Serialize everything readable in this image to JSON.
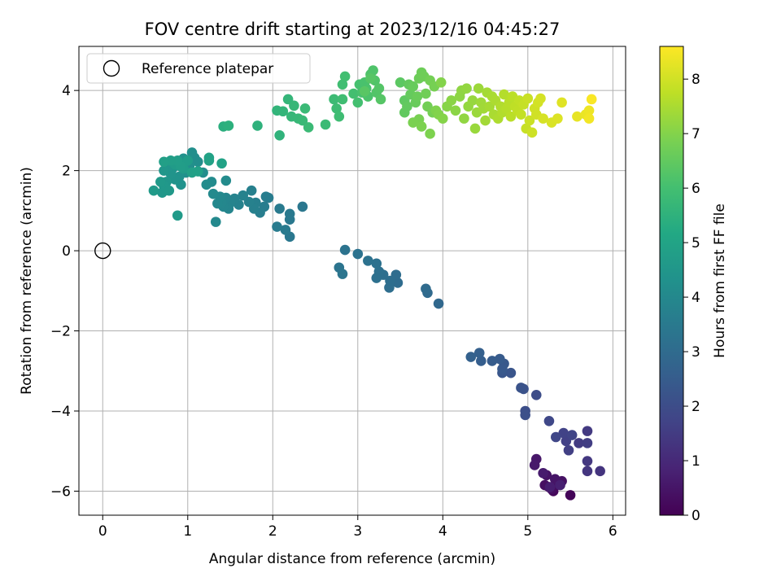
{
  "chart_data": {
    "type": "scatter",
    "title": "FOV centre drift starting at 2023/12/16 04:45:27",
    "xlabel": "Angular distance from reference (arcmin)",
    "ylabel": "Rotation from reference (arcmin)",
    "xlim": [
      -0.28,
      6.15
    ],
    "ylim": [
      -6.6,
      5.1
    ],
    "xticks": [
      0,
      1,
      2,
      3,
      4,
      5,
      6
    ],
    "yticks": [
      -6,
      -4,
      -2,
      0,
      2,
      4
    ],
    "xtick_labels": [
      "0",
      "1",
      "2",
      "3",
      "4",
      "5",
      "6"
    ],
    "ytick_labels": [
      "−6",
      "−4",
      "−2",
      "0",
      "2",
      "4"
    ],
    "grid": true,
    "legend": {
      "position": "top-left",
      "entries": [
        {
          "label": "Reference platepar",
          "marker": "open-circle"
        }
      ]
    },
    "colorbar": {
      "label": "Hours from first FF file",
      "colormap": "viridis",
      "range": [
        0,
        8.6
      ],
      "ticks": [
        0,
        1,
        2,
        3,
        4,
        5,
        6,
        7,
        8
      ],
      "tick_labels": [
        "0",
        "1",
        "2",
        "3",
        "4",
        "5",
        "6",
        "7",
        "8"
      ]
    },
    "reference_point": {
      "x": 0,
      "y": 0,
      "label": "Reference platepar"
    },
    "points": [
      {
        "x": 5.5,
        "y": -6.1,
        "c": 0.1
      },
      {
        "x": 5.3,
        "y": -6.0,
        "c": 0.15
      },
      {
        "x": 5.25,
        "y": -5.9,
        "c": 0.2
      },
      {
        "x": 5.35,
        "y": -5.8,
        "c": 0.25
      },
      {
        "x": 5.28,
        "y": -5.95,
        "c": 0.3
      },
      {
        "x": 5.2,
        "y": -5.85,
        "c": 0.35
      },
      {
        "x": 5.4,
        "y": -5.75,
        "c": 0.4
      },
      {
        "x": 5.22,
        "y": -5.6,
        "c": 0.45
      },
      {
        "x": 5.32,
        "y": -5.7,
        "c": 0.5
      },
      {
        "x": 5.1,
        "y": -5.2,
        "c": 0.55
      },
      {
        "x": 5.08,
        "y": -5.35,
        "c": 0.6
      },
      {
        "x": 5.18,
        "y": -5.55,
        "c": 0.65
      },
      {
        "x": 5.26,
        "y": -5.9,
        "c": 0.7
      },
      {
        "x": 5.38,
        "y": -5.85,
        "c": 0.75
      },
      {
        "x": 5.85,
        "y": -5.5,
        "c": 1.3
      },
      {
        "x": 5.7,
        "y": -5.5,
        "c": 1.35
      },
      {
        "x": 5.7,
        "y": -5.25,
        "c": 1.4
      },
      {
        "x": 5.7,
        "y": -4.5,
        "c": 1.45
      },
      {
        "x": 5.6,
        "y": -4.8,
        "c": 1.5
      },
      {
        "x": 5.7,
        "y": -4.8,
        "c": 1.55
      },
      {
        "x": 5.48,
        "y": -4.98,
        "c": 1.6
      },
      {
        "x": 5.45,
        "y": -4.75,
        "c": 1.65
      },
      {
        "x": 5.42,
        "y": -4.55,
        "c": 1.7
      },
      {
        "x": 5.52,
        "y": -4.6,
        "c": 1.75
      },
      {
        "x": 5.33,
        "y": -4.65,
        "c": 1.8
      },
      {
        "x": 5.25,
        "y": -4.25,
        "c": 1.85
      },
      {
        "x": 5.1,
        "y": -3.6,
        "c": 2.0
      },
      {
        "x": 4.97,
        "y": -4.0,
        "c": 2.05
      },
      {
        "x": 4.97,
        "y": -4.1,
        "c": 2.1
      },
      {
        "x": 4.95,
        "y": -3.45,
        "c": 2.15
      },
      {
        "x": 4.92,
        "y": -3.42,
        "c": 2.2
      },
      {
        "x": 4.8,
        "y": -3.05,
        "c": 2.25
      },
      {
        "x": 4.7,
        "y": -3.05,
        "c": 2.3
      },
      {
        "x": 4.72,
        "y": -2.82,
        "c": 2.35
      },
      {
        "x": 4.7,
        "y": -2.95,
        "c": 2.4
      },
      {
        "x": 4.67,
        "y": -2.7,
        "c": 2.45
      },
      {
        "x": 4.58,
        "y": -2.75,
        "c": 2.5
      },
      {
        "x": 4.45,
        "y": -2.75,
        "c": 2.55
      },
      {
        "x": 4.43,
        "y": -2.55,
        "c": 2.6
      },
      {
        "x": 4.33,
        "y": -2.65,
        "c": 2.65
      },
      {
        "x": 3.95,
        "y": -1.32,
        "c": 2.9
      },
      {
        "x": 3.82,
        "y": -1.05,
        "c": 2.95
      },
      {
        "x": 3.8,
        "y": -0.95,
        "c": 3.0
      },
      {
        "x": 3.47,
        "y": -0.8,
        "c": 3.02
      },
      {
        "x": 3.45,
        "y": -0.6,
        "c": 3.05
      },
      {
        "x": 3.37,
        "y": -0.92,
        "c": 3.08
      },
      {
        "x": 3.38,
        "y": -0.75,
        "c": 3.1
      },
      {
        "x": 3.3,
        "y": -0.6,
        "c": 3.12
      },
      {
        "x": 3.25,
        "y": -0.52,
        "c": 3.15
      },
      {
        "x": 3.22,
        "y": -0.68,
        "c": 3.18
      },
      {
        "x": 3.22,
        "y": -0.32,
        "c": 3.2
      },
      {
        "x": 3.12,
        "y": -0.25,
        "c": 3.22
      },
      {
        "x": 3.0,
        "y": -0.08,
        "c": 3.25
      },
      {
        "x": 2.85,
        "y": 0.02,
        "c": 3.28
      },
      {
        "x": 2.78,
        "y": -0.42,
        "c": 3.3
      },
      {
        "x": 2.82,
        "y": -0.58,
        "c": 3.32
      },
      {
        "x": 2.35,
        "y": 1.1,
        "c": 3.4
      },
      {
        "x": 2.2,
        "y": 0.35,
        "c": 3.42
      },
      {
        "x": 2.2,
        "y": 0.78,
        "c": 3.45
      },
      {
        "x": 2.2,
        "y": 0.92,
        "c": 3.48
      },
      {
        "x": 2.15,
        "y": 0.52,
        "c": 3.5
      },
      {
        "x": 2.08,
        "y": 1.05,
        "c": 3.52
      },
      {
        "x": 2.05,
        "y": 0.6,
        "c": 3.55
      },
      {
        "x": 1.95,
        "y": 1.32,
        "c": 3.58
      },
      {
        "x": 1.92,
        "y": 1.35,
        "c": 3.6
      },
      {
        "x": 1.9,
        "y": 1.1,
        "c": 3.62
      },
      {
        "x": 1.85,
        "y": 0.95,
        "c": 3.65
      },
      {
        "x": 1.8,
        "y": 1.2,
        "c": 3.68
      },
      {
        "x": 1.78,
        "y": 1.05,
        "c": 3.7
      },
      {
        "x": 1.75,
        "y": 1.5,
        "c": 3.72
      },
      {
        "x": 1.72,
        "y": 1.22,
        "c": 3.75
      },
      {
        "x": 1.65,
        "y": 1.38,
        "c": 3.78
      },
      {
        "x": 1.6,
        "y": 1.15,
        "c": 3.8
      },
      {
        "x": 1.55,
        "y": 1.3,
        "c": 3.82
      },
      {
        "x": 1.5,
        "y": 1.2,
        "c": 3.85
      },
      {
        "x": 1.48,
        "y": 1.05,
        "c": 3.88
      },
      {
        "x": 1.45,
        "y": 1.32,
        "c": 3.9
      },
      {
        "x": 1.42,
        "y": 1.1,
        "c": 3.92
      },
      {
        "x": 1.4,
        "y": 1.2,
        "c": 3.95
      },
      {
        "x": 1.38,
        "y": 1.35,
        "c": 3.98
      },
      {
        "x": 1.35,
        "y": 1.18,
        "c": 4.0
      },
      {
        "x": 1.33,
        "y": 0.72,
        "c": 4.02
      },
      {
        "x": 1.3,
        "y": 1.42,
        "c": 4.05
      },
      {
        "x": 1.28,
        "y": 1.72,
        "c": 4.08
      },
      {
        "x": 1.45,
        "y": 1.75,
        "c": 4.1
      },
      {
        "x": 1.22,
        "y": 1.65,
        "c": 4.12
      },
      {
        "x": 1.18,
        "y": 1.95,
        "c": 4.15
      },
      {
        "x": 1.12,
        "y": 2.22,
        "c": 4.18
      },
      {
        "x": 1.08,
        "y": 2.32,
        "c": 4.2
      },
      {
        "x": 1.05,
        "y": 2.45,
        "c": 4.22
      },
      {
        "x": 1.02,
        "y": 2.12,
        "c": 4.25
      },
      {
        "x": 0.98,
        "y": 1.95,
        "c": 4.28
      },
      {
        "x": 0.95,
        "y": 2.3,
        "c": 4.3
      },
      {
        "x": 0.92,
        "y": 1.65,
        "c": 4.32
      },
      {
        "x": 0.9,
        "y": 1.85,
        "c": 4.35
      },
      {
        "x": 0.85,
        "y": 1.78,
        "c": 4.38
      },
      {
        "x": 0.82,
        "y": 2.05,
        "c": 4.4
      },
      {
        "x": 0.8,
        "y": 1.92,
        "c": 4.42
      },
      {
        "x": 0.78,
        "y": 2.1,
        "c": 4.45
      },
      {
        "x": 0.75,
        "y": 1.72,
        "c": 4.48
      },
      {
        "x": 0.72,
        "y": 2.0,
        "c": 4.5
      },
      {
        "x": 0.7,
        "y": 1.45,
        "c": 4.52
      },
      {
        "x": 0.72,
        "y": 1.62,
        "c": 4.55
      },
      {
        "x": 0.78,
        "y": 1.5,
        "c": 4.58
      },
      {
        "x": 0.68,
        "y": 1.72,
        "c": 4.6
      },
      {
        "x": 0.6,
        "y": 1.5,
        "c": 4.62
      },
      {
        "x": 0.88,
        "y": 0.88,
        "c": 4.65
      },
      {
        "x": 0.85,
        "y": 2.15,
        "c": 4.68
      },
      {
        "x": 0.95,
        "y": 2.05,
        "c": 4.7
      },
      {
        "x": 1.0,
        "y": 2.25,
        "c": 4.72
      },
      {
        "x": 0.92,
        "y": 2.1,
        "c": 4.75
      },
      {
        "x": 0.88,
        "y": 2.25,
        "c": 4.78
      },
      {
        "x": 0.8,
        "y": 2.25,
        "c": 4.8
      },
      {
        "x": 0.72,
        "y": 2.22,
        "c": 4.82
      },
      {
        "x": 1.05,
        "y": 1.95,
        "c": 4.85
      },
      {
        "x": 1.12,
        "y": 1.98,
        "c": 4.88
      },
      {
        "x": 1.25,
        "y": 2.25,
        "c": 4.9
      },
      {
        "x": 1.25,
        "y": 2.32,
        "c": 4.92
      },
      {
        "x": 1.4,
        "y": 2.18,
        "c": 4.95
      },
      {
        "x": 1.42,
        "y": 3.1,
        "c": 5.4
      },
      {
        "x": 1.48,
        "y": 3.12,
        "c": 5.45
      },
      {
        "x": 1.82,
        "y": 3.12,
        "c": 5.5
      },
      {
        "x": 2.08,
        "y": 2.88,
        "c": 5.55
      },
      {
        "x": 2.05,
        "y": 3.5,
        "c": 5.6
      },
      {
        "x": 2.12,
        "y": 3.48,
        "c": 5.62
      },
      {
        "x": 2.18,
        "y": 3.78,
        "c": 5.65
      },
      {
        "x": 2.22,
        "y": 3.35,
        "c": 5.68
      },
      {
        "x": 2.25,
        "y": 3.62,
        "c": 5.7
      },
      {
        "x": 2.3,
        "y": 3.3,
        "c": 5.72
      },
      {
        "x": 2.35,
        "y": 3.25,
        "c": 5.75
      },
      {
        "x": 2.38,
        "y": 3.55,
        "c": 5.78
      },
      {
        "x": 2.42,
        "y": 3.08,
        "c": 5.8
      },
      {
        "x": 2.62,
        "y": 3.15,
        "c": 5.82
      },
      {
        "x": 2.72,
        "y": 3.78,
        "c": 5.85
      },
      {
        "x": 2.75,
        "y": 3.55,
        "c": 5.88
      },
      {
        "x": 2.78,
        "y": 3.35,
        "c": 5.9
      },
      {
        "x": 2.82,
        "y": 3.78,
        "c": 5.92
      },
      {
        "x": 2.82,
        "y": 4.15,
        "c": 5.95
      },
      {
        "x": 2.85,
        "y": 4.35,
        "c": 5.98
      },
      {
        "x": 2.95,
        "y": 3.92,
        "c": 6.0
      },
      {
        "x": 3.0,
        "y": 3.7,
        "c": 6.02
      },
      {
        "x": 3.02,
        "y": 4.15,
        "c": 6.05
      },
      {
        "x": 3.05,
        "y": 3.95,
        "c": 6.08
      },
      {
        "x": 3.08,
        "y": 4.2,
        "c": 6.1
      },
      {
        "x": 3.1,
        "y": 4.05,
        "c": 6.12
      },
      {
        "x": 3.12,
        "y": 3.85,
        "c": 6.15
      },
      {
        "x": 3.15,
        "y": 4.4,
        "c": 6.18
      },
      {
        "x": 3.18,
        "y": 4.5,
        "c": 6.2
      },
      {
        "x": 3.2,
        "y": 4.25,
        "c": 6.22
      },
      {
        "x": 3.22,
        "y": 3.95,
        "c": 6.25
      },
      {
        "x": 3.25,
        "y": 4.05,
        "c": 6.28
      },
      {
        "x": 3.27,
        "y": 3.78,
        "c": 6.3
      },
      {
        "x": 3.15,
        "y": 4.3,
        "c": 6.32
      },
      {
        "x": 3.08,
        "y": 3.98,
        "c": 6.35
      },
      {
        "x": 3.5,
        "y": 4.2,
        "c": 6.4
      },
      {
        "x": 3.55,
        "y": 3.75,
        "c": 6.45
      },
      {
        "x": 3.55,
        "y": 3.45,
        "c": 6.48
      },
      {
        "x": 3.58,
        "y": 3.6,
        "c": 6.5
      },
      {
        "x": 3.6,
        "y": 4.15,
        "c": 6.52
      },
      {
        "x": 3.62,
        "y": 3.9,
        "c": 6.55
      },
      {
        "x": 3.65,
        "y": 4.1,
        "c": 6.58
      },
      {
        "x": 3.68,
        "y": 3.7,
        "c": 6.6
      },
      {
        "x": 3.7,
        "y": 3.85,
        "c": 6.62
      },
      {
        "x": 3.72,
        "y": 4.3,
        "c": 6.65
      },
      {
        "x": 3.75,
        "y": 4.45,
        "c": 6.68
      },
      {
        "x": 3.78,
        "y": 4.35,
        "c": 6.7
      },
      {
        "x": 3.8,
        "y": 3.92,
        "c": 6.72
      },
      {
        "x": 3.82,
        "y": 3.6,
        "c": 6.75
      },
      {
        "x": 3.85,
        "y": 4.25,
        "c": 6.78
      },
      {
        "x": 3.88,
        "y": 3.45,
        "c": 6.8
      },
      {
        "x": 3.9,
        "y": 4.1,
        "c": 6.82
      },
      {
        "x": 3.72,
        "y": 3.28,
        "c": 6.85
      },
      {
        "x": 3.65,
        "y": 3.2,
        "c": 6.88
      },
      {
        "x": 3.75,
        "y": 3.1,
        "c": 6.9
      },
      {
        "x": 3.85,
        "y": 2.92,
        "c": 6.92
      },
      {
        "x": 3.92,
        "y": 3.5,
        "c": 6.95
      },
      {
        "x": 3.95,
        "y": 3.4,
        "c": 6.98
      },
      {
        "x": 3.98,
        "y": 4.2,
        "c": 7.0
      },
      {
        "x": 4.0,
        "y": 3.3,
        "c": 7.02
      },
      {
        "x": 4.05,
        "y": 3.6,
        "c": 7.05
      },
      {
        "x": 4.1,
        "y": 3.75,
        "c": 7.08
      },
      {
        "x": 4.15,
        "y": 3.5,
        "c": 7.1
      },
      {
        "x": 4.2,
        "y": 3.85,
        "c": 7.12
      },
      {
        "x": 4.22,
        "y": 4.0,
        "c": 7.15
      },
      {
        "x": 4.25,
        "y": 3.3,
        "c": 7.18
      },
      {
        "x": 4.28,
        "y": 4.05,
        "c": 7.2
      },
      {
        "x": 4.3,
        "y": 3.6,
        "c": 7.22
      },
      {
        "x": 4.35,
        "y": 3.75,
        "c": 7.25
      },
      {
        "x": 4.38,
        "y": 3.05,
        "c": 7.28
      },
      {
        "x": 4.4,
        "y": 3.45,
        "c": 7.3
      },
      {
        "x": 4.42,
        "y": 4.05,
        "c": 7.32
      },
      {
        "x": 4.45,
        "y": 3.7,
        "c": 7.35
      },
      {
        "x": 4.48,
        "y": 3.55,
        "c": 7.38
      },
      {
        "x": 4.5,
        "y": 3.25,
        "c": 7.4
      },
      {
        "x": 4.52,
        "y": 3.95,
        "c": 7.42
      },
      {
        "x": 4.55,
        "y": 3.6,
        "c": 7.45
      },
      {
        "x": 4.58,
        "y": 3.85,
        "c": 7.48
      },
      {
        "x": 4.6,
        "y": 3.4,
        "c": 7.5
      },
      {
        "x": 4.62,
        "y": 3.75,
        "c": 7.52
      },
      {
        "x": 4.65,
        "y": 3.3,
        "c": 7.55
      },
      {
        "x": 4.68,
        "y": 3.6,
        "c": 7.58
      },
      {
        "x": 4.7,
        "y": 3.45,
        "c": 7.6
      },
      {
        "x": 4.72,
        "y": 3.9,
        "c": 7.62
      },
      {
        "x": 4.75,
        "y": 3.55,
        "c": 7.65
      },
      {
        "x": 4.78,
        "y": 3.7,
        "c": 7.68
      },
      {
        "x": 4.8,
        "y": 3.35,
        "c": 7.7
      },
      {
        "x": 4.82,
        "y": 3.85,
        "c": 7.72
      },
      {
        "x": 4.85,
        "y": 3.6,
        "c": 7.75
      },
      {
        "x": 4.88,
        "y": 3.5,
        "c": 7.78
      },
      {
        "x": 4.9,
        "y": 3.75,
        "c": 7.8
      },
      {
        "x": 4.92,
        "y": 3.4,
        "c": 7.82
      },
      {
        "x": 4.95,
        "y": 3.65,
        "c": 7.85
      },
      {
        "x": 4.98,
        "y": 3.05,
        "c": 7.88
      },
      {
        "x": 5.0,
        "y": 3.8,
        "c": 7.9
      },
      {
        "x": 5.02,
        "y": 3.25,
        "c": 7.92
      },
      {
        "x": 5.05,
        "y": 2.95,
        "c": 7.95
      },
      {
        "x": 5.08,
        "y": 3.55,
        "c": 7.98
      },
      {
        "x": 5.1,
        "y": 3.4,
        "c": 8.0
      },
      {
        "x": 5.12,
        "y": 3.7,
        "c": 8.02
      },
      {
        "x": 5.15,
        "y": 3.8,
        "c": 8.05
      },
      {
        "x": 5.18,
        "y": 3.3,
        "c": 8.08
      },
      {
        "x": 5.28,
        "y": 3.2,
        "c": 8.12
      },
      {
        "x": 5.35,
        "y": 3.3,
        "c": 8.15
      },
      {
        "x": 5.4,
        "y": 3.7,
        "c": 8.2
      },
      {
        "x": 5.58,
        "y": 3.35,
        "c": 8.3
      },
      {
        "x": 5.68,
        "y": 3.4,
        "c": 8.35
      },
      {
        "x": 5.72,
        "y": 3.5,
        "c": 8.4
      },
      {
        "x": 5.72,
        "y": 3.3,
        "c": 8.45
      },
      {
        "x": 5.75,
        "y": 3.78,
        "c": 8.55
      }
    ]
  }
}
